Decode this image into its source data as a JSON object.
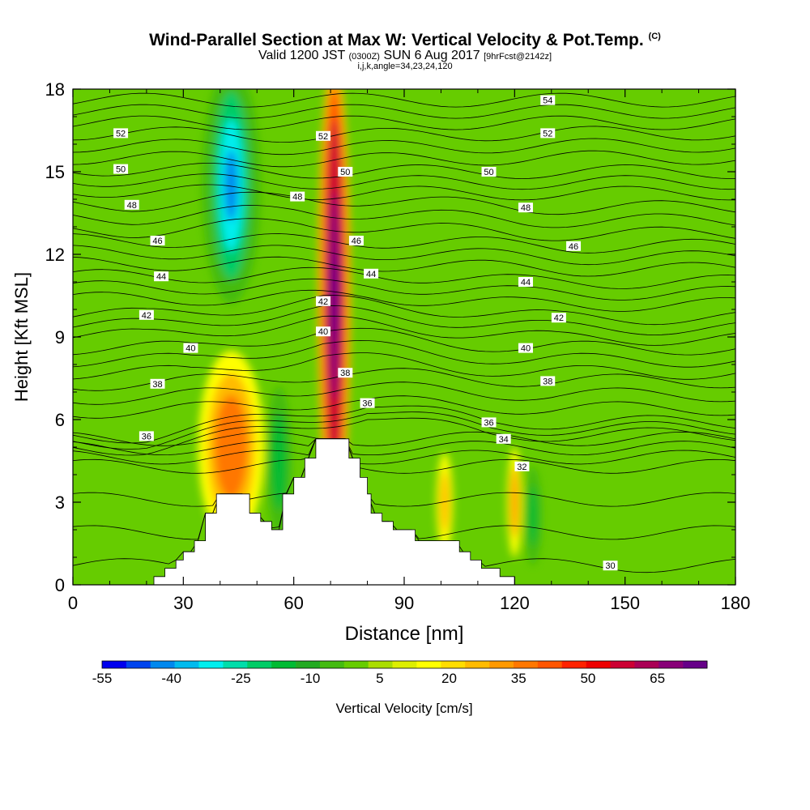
{
  "chart_data": {
    "type": "heatmap",
    "title": "Wind-Parallel Section at Max W: Vertical Velocity & Pot.Temp.",
    "title_mark": "(C)",
    "subtitle": {
      "valid": "Valid 1200 JST",
      "utc": "(0300Z)",
      "date": "SUN 6 Aug 2017",
      "forecast": "[9hrFcst@2142z]"
    },
    "subtitle2": "i,j,k,angle=34,23,24,120",
    "xlabel": "Distance [nm]",
    "ylabel": "Height [Kft MSL]",
    "xlim": [
      0,
      180
    ],
    "ylim": [
      0,
      18
    ],
    "xticks": [
      "0",
      "30",
      "60",
      "90",
      "120",
      "150",
      "180"
    ],
    "yticks": [
      "0",
      "3",
      "6",
      "9",
      "12",
      "15",
      "18"
    ],
    "grid": false,
    "colorbar": {
      "label": "Vertical Velocity [cm/s]",
      "tick_labels": [
        "-55",
        "-40",
        "-25",
        "-10",
        "5",
        "20",
        "35",
        "50",
        "65"
      ],
      "colors": [
        "#0000ee",
        "#0044ee",
        "#0088ee",
        "#00bbee",
        "#00eeee",
        "#00ddaa",
        "#00cc66",
        "#00bb33",
        "#22aa22",
        "#44bb11",
        "#66cc00",
        "#aadd00",
        "#ddee00",
        "#ffff00",
        "#ffdd00",
        "#ffbb00",
        "#ff9900",
        "#ff7700",
        "#ff5500",
        "#ff2200",
        "#ee0000",
        "#cc0033",
        "#aa0055",
        "#880077",
        "#660088"
      ]
    },
    "series": [
      {
        "name": "Vertical Velocity",
        "units": "cm/s",
        "features": [
          {
            "x": 43,
            "y": 14.5,
            "value": -45
          },
          {
            "x": 71,
            "y": 10.5,
            "value": 70
          },
          {
            "x": 43,
            "y": 5,
            "value": 28
          },
          {
            "x": 56,
            "y": 4.5,
            "value": -22
          },
          {
            "x": 101,
            "y": 3,
            "value": 18
          },
          {
            "x": 125,
            "y": 2.5,
            "value": -18
          },
          {
            "x": 120,
            "y": 3,
            "value": 25
          }
        ]
      },
      {
        "name": "Potential Temperature",
        "units": "C"
      }
    ],
    "contours": [
      {
        "label": "30",
        "x": 146,
        "y": 0.7
      },
      {
        "label": "32",
        "x": 122,
        "y": 4.3
      },
      {
        "label": "34",
        "x": 117,
        "y": 5.3
      },
      {
        "label": "36",
        "x": 20,
        "y": 5.4
      },
      {
        "label": "36",
        "x": 80,
        "y": 6.6
      },
      {
        "label": "36",
        "x": 113,
        "y": 5.9
      },
      {
        "label": "38",
        "x": 23,
        "y": 7.3
      },
      {
        "label": "38",
        "x": 74,
        "y": 7.7
      },
      {
        "label": "38",
        "x": 129,
        "y": 7.4
      },
      {
        "label": "40",
        "x": 32,
        "y": 8.6
      },
      {
        "label": "40",
        "x": 68,
        "y": 9.2
      },
      {
        "label": "40",
        "x": 123,
        "y": 8.6
      },
      {
        "label": "42",
        "x": 20,
        "y": 9.8
      },
      {
        "label": "42",
        "x": 68,
        "y": 10.3
      },
      {
        "label": "42",
        "x": 132,
        "y": 9.7
      },
      {
        "label": "44",
        "x": 24,
        "y": 11.2
      },
      {
        "label": "44",
        "x": 81,
        "y": 11.3
      },
      {
        "label": "44",
        "x": 123,
        "y": 11
      },
      {
        "label": "46",
        "x": 23,
        "y": 12.5
      },
      {
        "label": "46",
        "x": 77,
        "y": 12.5
      },
      {
        "label": "46",
        "x": 136,
        "y": 12.3
      },
      {
        "label": "48",
        "x": 16,
        "y": 13.8
      },
      {
        "label": "48",
        "x": 61,
        "y": 14.1
      },
      {
        "label": "48",
        "x": 123,
        "y": 13.7
      },
      {
        "label": "50",
        "x": 13,
        "y": 15.1
      },
      {
        "label": "50",
        "x": 74,
        "y": 15
      },
      {
        "label": "50",
        "x": 113,
        "y": 15
      },
      {
        "label": "52",
        "x": 13,
        "y": 16.4
      },
      {
        "label": "52",
        "x": 68,
        "y": 16.3
      },
      {
        "label": "52",
        "x": 129,
        "y": 16.4
      },
      {
        "label": "54",
        "x": 129,
        "y": 17.6
      }
    ],
    "terrain": [
      [
        0,
        0
      ],
      [
        22,
        0
      ],
      [
        22,
        0.3
      ],
      [
        25,
        0.3
      ],
      [
        25,
        0.6
      ],
      [
        28,
        0.6
      ],
      [
        28,
        0.9
      ],
      [
        30,
        0.9
      ],
      [
        30,
        1.2
      ],
      [
        33,
        1.2
      ],
      [
        33,
        1.6
      ],
      [
        36,
        1.6
      ],
      [
        36,
        2.6
      ],
      [
        39,
        2.6
      ],
      [
        39,
        3.3
      ],
      [
        48,
        3.3
      ],
      [
        48,
        2.6
      ],
      [
        51,
        2.6
      ],
      [
        51,
        2.3
      ],
      [
        54,
        2.3
      ],
      [
        54,
        2
      ],
      [
        57,
        2
      ],
      [
        57,
        3.3
      ],
      [
        60,
        3.3
      ],
      [
        60,
        3.9
      ],
      [
        63,
        3.9
      ],
      [
        63,
        4.6
      ],
      [
        66,
        4.6
      ],
      [
        66,
        5.3
      ],
      [
        75,
        5.3
      ],
      [
        75,
        4.6
      ],
      [
        78,
        4.6
      ],
      [
        78,
        3.9
      ],
      [
        80,
        3.9
      ],
      [
        80,
        3.3
      ],
      [
        81,
        3.3
      ],
      [
        81,
        2.6
      ],
      [
        84,
        2.6
      ],
      [
        84,
        2.3
      ],
      [
        87,
        2.3
      ],
      [
        87,
        2
      ],
      [
        93,
        2
      ],
      [
        93,
        1.6
      ],
      [
        105,
        1.6
      ],
      [
        105,
        1.2
      ],
      [
        108,
        1.2
      ],
      [
        108,
        0.9
      ],
      [
        111,
        0.9
      ],
      [
        111,
        0.6
      ],
      [
        116,
        0.6
      ],
      [
        116,
        0.3
      ],
      [
        120,
        0.3
      ],
      [
        120,
        0
      ],
      [
        180,
        0
      ]
    ]
  }
}
